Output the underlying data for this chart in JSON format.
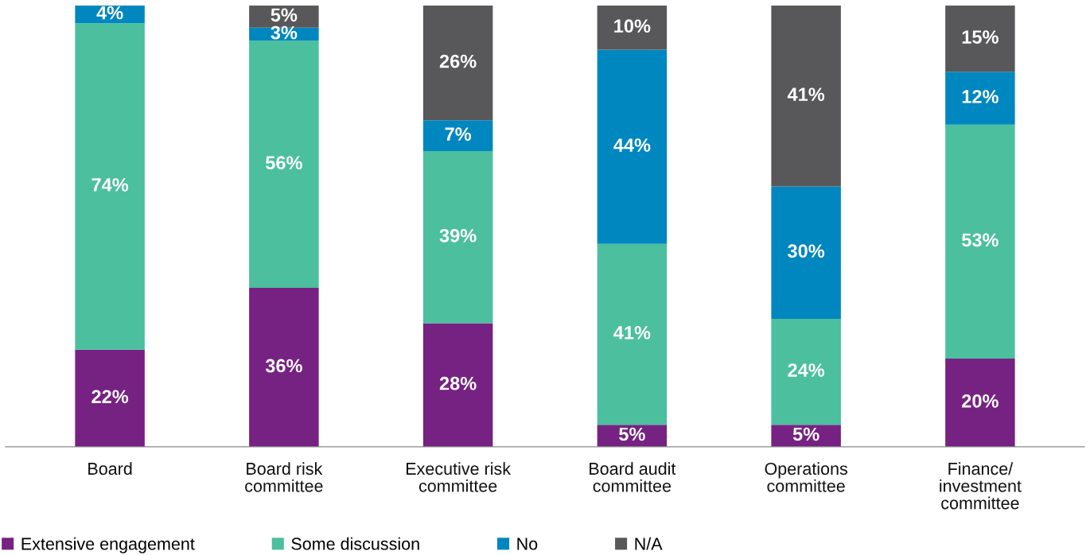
{
  "chart_data": {
    "type": "bar",
    "stacked": true,
    "categories": [
      "Board",
      "Board risk\ncommittee",
      "Executive risk\ncommittee",
      "Board audit\ncommittee",
      "Operations\ncommittee",
      "Finance/\ninvestment\ncommittee"
    ],
    "series": [
      {
        "name": "Extensive engagement",
        "color": "#762282",
        "values": [
          22,
          36,
          28,
          5,
          5,
          20
        ],
        "value_labels": [
          "22%",
          "36%",
          "28%",
          "5%",
          "5%",
          "20%"
        ]
      },
      {
        "name": "Some discussion",
        "color": "#4bbf9e",
        "values": [
          74,
          56,
          39,
          41,
          24,
          53
        ],
        "value_labels": [
          "74%",
          "56%",
          "39%",
          "41%",
          "24%",
          "53%"
        ]
      },
      {
        "name": "No",
        "color": "#0087bf",
        "values": [
          4,
          3,
          7,
          44,
          30,
          12
        ],
        "value_labels": [
          "4%",
          "3%",
          "7%",
          "44%",
          "30%",
          "12%"
        ]
      },
      {
        "name": "N/A",
        "color": "#58585a",
        "values": [
          0,
          5,
          26,
          10,
          41,
          15
        ],
        "value_labels": [
          null,
          "5%",
          "26%",
          "10%",
          "41%",
          "15%"
        ]
      }
    ],
    "legend": "bottom left",
    "grid": false,
    "tick_labels": "x"
  }
}
